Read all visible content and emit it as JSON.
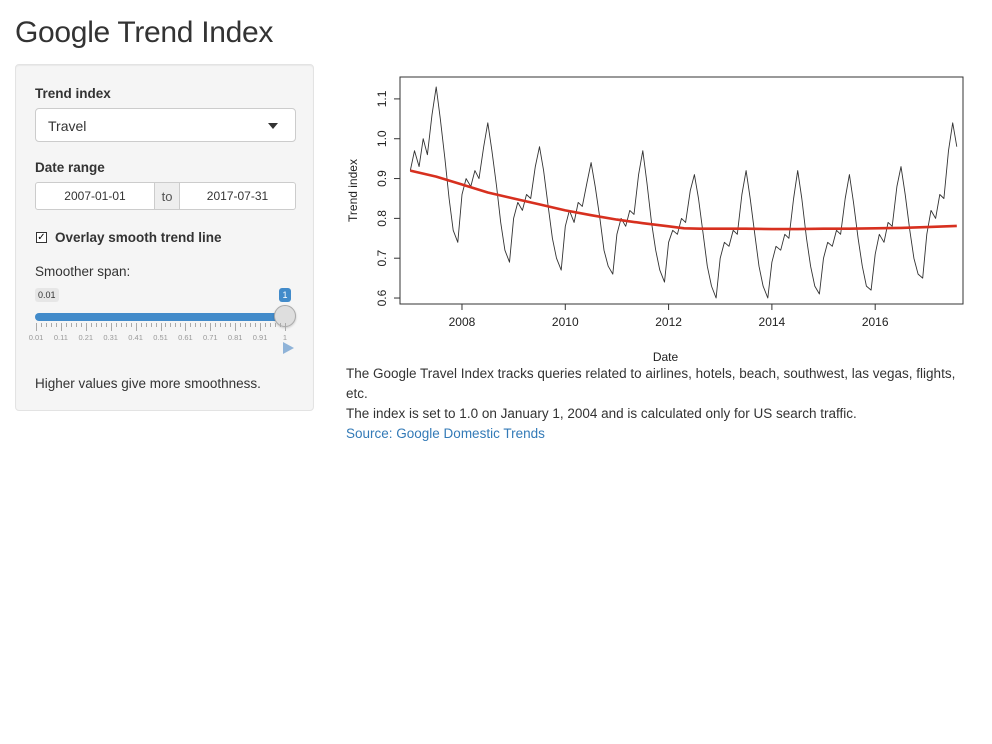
{
  "page": {
    "title": "Google Trend Index"
  },
  "sidebar": {
    "trend_label": "Trend index",
    "trend_selected": "Travel",
    "date_label": "Date range",
    "date_start": "2007-01-01",
    "date_sep": "to",
    "date_end": "2017-07-31",
    "smooth_checkbox_label": "Overlay smooth trend line",
    "smooth_checked": true,
    "span_label": "Smoother span:",
    "slider": {
      "min": "0.01",
      "max": "1",
      "value": 1,
      "tick_labels": [
        "0.01",
        "0.11",
        "0.21",
        "0.31",
        "0.41",
        "0.51",
        "0.61",
        "0.71",
        "0.81",
        "0.91",
        "1"
      ]
    },
    "help_text": "Higher values give more smoothness."
  },
  "chart_data": {
    "type": "line",
    "xlabel": "Date",
    "ylabel": "Trend index",
    "xlim": [
      2006.8,
      2017.7
    ],
    "ylim": [
      0.585,
      1.155
    ],
    "x_ticks": [
      2008,
      2010,
      2012,
      2014,
      2016
    ],
    "y_ticks": [
      "0.6",
      "0.7",
      "0.8",
      "0.9",
      "1.0",
      "1.1"
    ],
    "grid": false,
    "series": [
      {
        "color": "#333333",
        "points": [
          [
            2007.0,
            0.92
          ],
          [
            2007.08,
            0.97
          ],
          [
            2007.17,
            0.93
          ],
          [
            2007.25,
            1.0
          ],
          [
            2007.33,
            0.96
          ],
          [
            2007.42,
            1.06
          ],
          [
            2007.5,
            1.13
          ],
          [
            2007.58,
            1.05
          ],
          [
            2007.67,
            0.95
          ],
          [
            2007.75,
            0.85
          ],
          [
            2007.83,
            0.77
          ],
          [
            2007.92,
            0.74
          ],
          [
            2008.0,
            0.86
          ],
          [
            2008.08,
            0.9
          ],
          [
            2008.17,
            0.88
          ],
          [
            2008.25,
            0.92
          ],
          [
            2008.33,
            0.9
          ],
          [
            2008.42,
            0.98
          ],
          [
            2008.5,
            1.04
          ],
          [
            2008.58,
            0.97
          ],
          [
            2008.67,
            0.88
          ],
          [
            2008.75,
            0.79
          ],
          [
            2008.83,
            0.72
          ],
          [
            2008.92,
            0.69
          ],
          [
            2009.0,
            0.8
          ],
          [
            2009.08,
            0.84
          ],
          [
            2009.17,
            0.82
          ],
          [
            2009.25,
            0.86
          ],
          [
            2009.33,
            0.85
          ],
          [
            2009.42,
            0.93
          ],
          [
            2009.5,
            0.98
          ],
          [
            2009.58,
            0.92
          ],
          [
            2009.67,
            0.83
          ],
          [
            2009.75,
            0.75
          ],
          [
            2009.83,
            0.7
          ],
          [
            2009.92,
            0.67
          ],
          [
            2010.0,
            0.78
          ],
          [
            2010.08,
            0.82
          ],
          [
            2010.17,
            0.79
          ],
          [
            2010.25,
            0.84
          ],
          [
            2010.33,
            0.83
          ],
          [
            2010.42,
            0.89
          ],
          [
            2010.5,
            0.94
          ],
          [
            2010.58,
            0.88
          ],
          [
            2010.67,
            0.8
          ],
          [
            2010.75,
            0.72
          ],
          [
            2010.83,
            0.68
          ],
          [
            2010.92,
            0.66
          ],
          [
            2011.0,
            0.76
          ],
          [
            2011.08,
            0.8
          ],
          [
            2011.17,
            0.78
          ],
          [
            2011.25,
            0.82
          ],
          [
            2011.33,
            0.81
          ],
          [
            2011.42,
            0.91
          ],
          [
            2011.5,
            0.97
          ],
          [
            2011.58,
            0.89
          ],
          [
            2011.67,
            0.79
          ],
          [
            2011.75,
            0.72
          ],
          [
            2011.83,
            0.67
          ],
          [
            2011.92,
            0.64
          ],
          [
            2012.0,
            0.74
          ],
          [
            2012.08,
            0.77
          ],
          [
            2012.17,
            0.76
          ],
          [
            2012.25,
            0.8
          ],
          [
            2012.33,
            0.79
          ],
          [
            2012.42,
            0.87
          ],
          [
            2012.5,
            0.91
          ],
          [
            2012.58,
            0.85
          ],
          [
            2012.67,
            0.76
          ],
          [
            2012.75,
            0.68
          ],
          [
            2012.83,
            0.63
          ],
          [
            2012.92,
            0.6
          ],
          [
            2013.0,
            0.7
          ],
          [
            2013.08,
            0.74
          ],
          [
            2013.17,
            0.73
          ],
          [
            2013.25,
            0.77
          ],
          [
            2013.33,
            0.76
          ],
          [
            2013.42,
            0.86
          ],
          [
            2013.5,
            0.92
          ],
          [
            2013.58,
            0.85
          ],
          [
            2013.67,
            0.76
          ],
          [
            2013.75,
            0.68
          ],
          [
            2013.83,
            0.63
          ],
          [
            2013.92,
            0.6
          ],
          [
            2014.0,
            0.69
          ],
          [
            2014.08,
            0.73
          ],
          [
            2014.17,
            0.72
          ],
          [
            2014.25,
            0.76
          ],
          [
            2014.33,
            0.75
          ],
          [
            2014.42,
            0.85
          ],
          [
            2014.5,
            0.92
          ],
          [
            2014.58,
            0.85
          ],
          [
            2014.67,
            0.75
          ],
          [
            2014.75,
            0.68
          ],
          [
            2014.83,
            0.63
          ],
          [
            2014.92,
            0.61
          ],
          [
            2015.0,
            0.7
          ],
          [
            2015.08,
            0.74
          ],
          [
            2015.17,
            0.73
          ],
          [
            2015.25,
            0.77
          ],
          [
            2015.33,
            0.76
          ],
          [
            2015.42,
            0.85
          ],
          [
            2015.5,
            0.91
          ],
          [
            2015.58,
            0.84
          ],
          [
            2015.67,
            0.75
          ],
          [
            2015.75,
            0.68
          ],
          [
            2015.83,
            0.63
          ],
          [
            2015.92,
            0.62
          ],
          [
            2016.0,
            0.71
          ],
          [
            2016.08,
            0.76
          ],
          [
            2016.17,
            0.74
          ],
          [
            2016.25,
            0.79
          ],
          [
            2016.33,
            0.78
          ],
          [
            2016.42,
            0.88
          ],
          [
            2016.5,
            0.93
          ],
          [
            2016.58,
            0.86
          ],
          [
            2016.67,
            0.77
          ],
          [
            2016.75,
            0.7
          ],
          [
            2016.83,
            0.66
          ],
          [
            2016.92,
            0.65
          ],
          [
            2017.0,
            0.76
          ],
          [
            2017.08,
            0.82
          ],
          [
            2017.17,
            0.8
          ],
          [
            2017.25,
            0.86
          ],
          [
            2017.33,
            0.85
          ],
          [
            2017.42,
            0.97
          ],
          [
            2017.5,
            1.04
          ],
          [
            2017.58,
            0.98
          ]
        ]
      },
      {
        "color": "#d7301f",
        "points": [
          [
            2007.0,
            0.92
          ],
          [
            2007.5,
            0.905
          ],
          [
            2008.0,
            0.885
          ],
          [
            2008.5,
            0.865
          ],
          [
            2009.0,
            0.85
          ],
          [
            2009.5,
            0.835
          ],
          [
            2010.0,
            0.82
          ],
          [
            2010.5,
            0.808
          ],
          [
            2011.0,
            0.797
          ],
          [
            2011.5,
            0.788
          ],
          [
            2012.0,
            0.78
          ],
          [
            2012.3,
            0.775
          ],
          [
            2012.6,
            0.774
          ],
          [
            2013.0,
            0.774
          ],
          [
            2013.5,
            0.774
          ],
          [
            2014.0,
            0.773
          ],
          [
            2014.5,
            0.773
          ],
          [
            2015.0,
            0.774
          ],
          [
            2015.5,
            0.774
          ],
          [
            2016.0,
            0.775
          ],
          [
            2016.5,
            0.776
          ],
          [
            2017.0,
            0.778
          ],
          [
            2017.58,
            0.781
          ]
        ]
      }
    ]
  },
  "caption": {
    "line1": "The Google Travel Index tracks queries related to airlines, hotels, beach, southwest, las vegas, flights, etc.",
    "line2": "The index is set to 1.0 on January 1, 2004 and is calculated only for US search traffic.",
    "source_link": "Source: Google Domestic Trends"
  }
}
